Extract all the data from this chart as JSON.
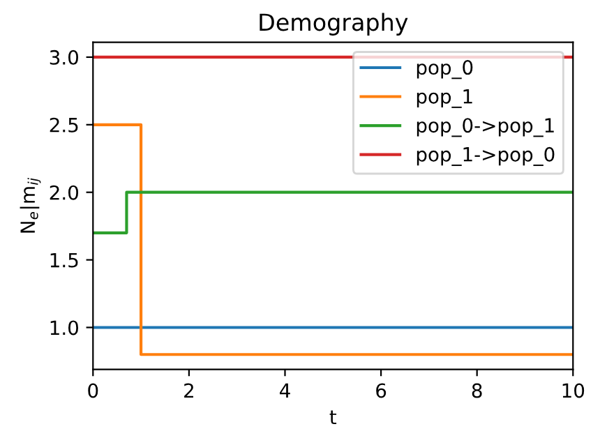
{
  "chart_data": {
    "type": "step",
    "title": "Demography",
    "xlabel": "t",
    "ylabel": "N$_{e}$|m$_{ij}$",
    "series": [
      {
        "name": "pop_0",
        "color": "#1f77b4",
        "x": [
          0,
          10
        ],
        "values": [
          1.0,
          1.0
        ]
      },
      {
        "name": "pop_1",
        "color": "#ff7f0e",
        "x": [
          0,
          1,
          10
        ],
        "values": [
          2.5,
          0.8,
          0.8
        ]
      },
      {
        "name": "pop_0->pop_1",
        "color": "#2ca02c",
        "x": [
          0,
          0.7,
          10
        ],
        "values": [
          1.7,
          2.0,
          2.0
        ]
      },
      {
        "name": "pop_1->pop_0",
        "color": "#d62728",
        "x": [
          0,
          10
        ],
        "values": [
          3.0,
          3.0
        ]
      }
    ],
    "xlim": [
      0,
      10
    ],
    "xticks": [
      0,
      2,
      4,
      6,
      8,
      10
    ],
    "ylim": [
      0.69,
      3.11
    ],
    "yticks": [
      {
        "value": 1.0,
        "label": "1.0"
      },
      {
        "value": 1.5,
        "label": "1.5"
      },
      {
        "value": 2.0,
        "label": "2.0"
      },
      {
        "value": 2.5,
        "label": "2.5"
      },
      {
        "value": 3.0,
        "label": "3.0"
      }
    ],
    "legend": "top right",
    "grid": false
  }
}
